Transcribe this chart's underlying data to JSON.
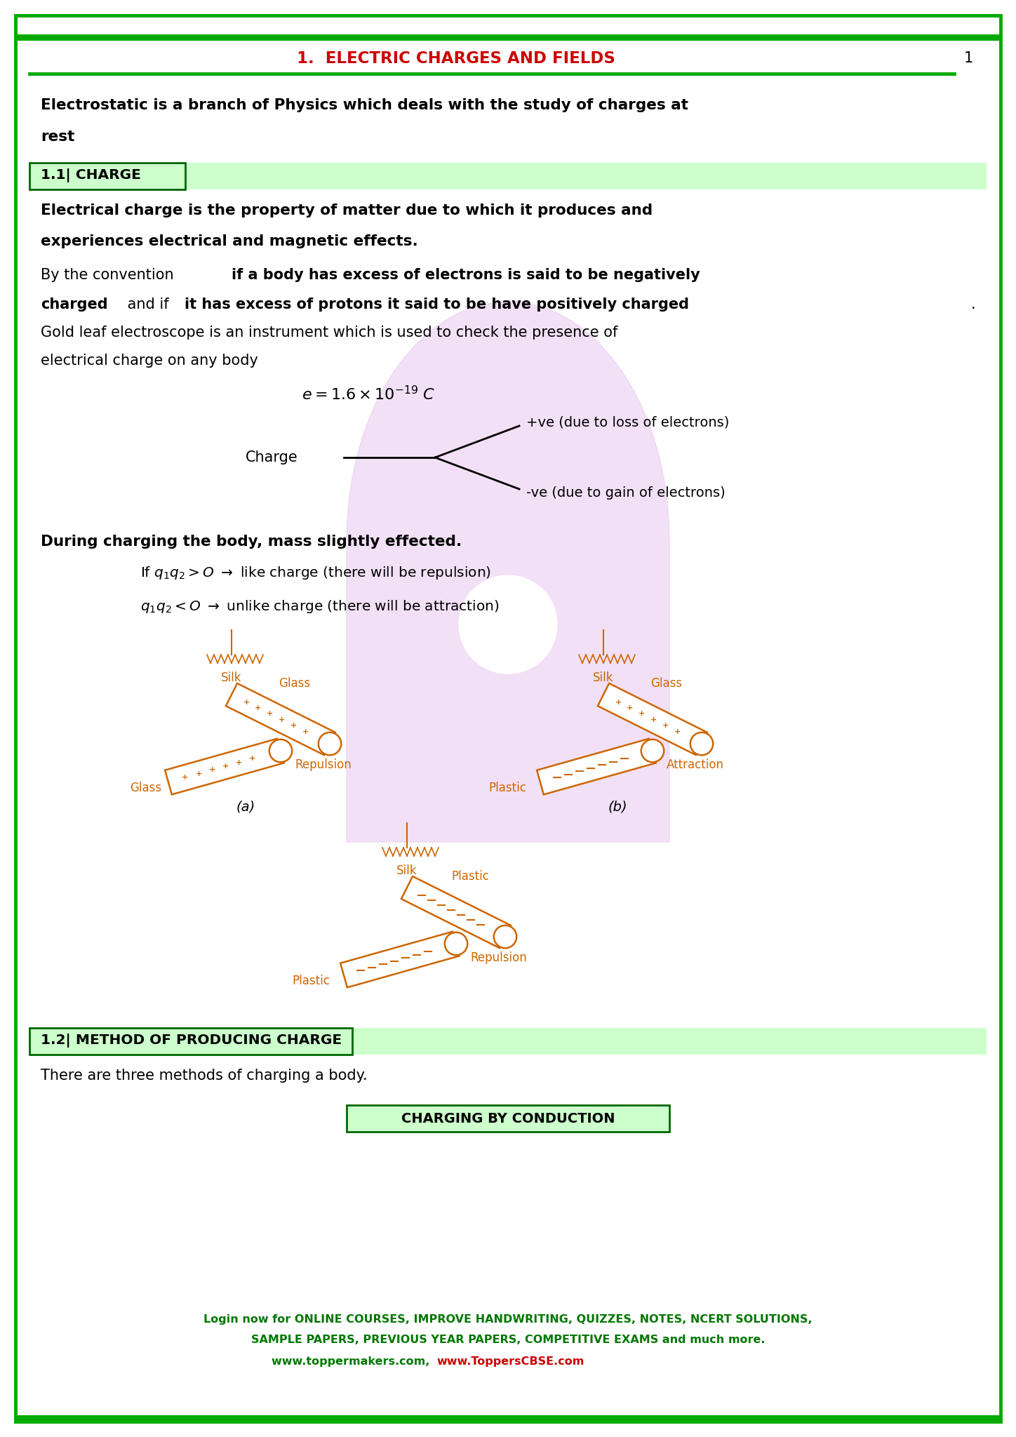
{
  "page_title": "1.  ELECTRIC CHARGES AND FIELDS",
  "page_number": "1",
  "title_color": "#cc0000",
  "border_color": "#00aa00",
  "header_line_color": "#00aa00",
  "background_color": "#ffffff",
  "section_bg": "#ccffcc",
  "section_border": "#006600",
  "rod_color": "#cc6600",
  "rod_face": "#ffffff",
  "watermark_color": "#e8c8f0",
  "intro_text_line1": "Electrostatic is a branch of Physics which deals with the study of charges at",
  "intro_text_line2": "rest",
  "section1_label": "1.1| CHARGE",
  "sec1_def_line1": "Electrical charge is the property of matter due to which it produces and",
  "sec1_def_line2": "experiences electrical and magnetic effects.",
  "charge_label": "Charge",
  "charge_plus": "+ve (due to loss of electrons)",
  "charge_minus": "-ve (due to gain of electrons)",
  "mass_text": "During charging the body, mass slightly effected.",
  "section2_label": "1.2| METHOD OF PRODUCING CHARGE",
  "section2_intro": "There are three methods of charging a body.",
  "charging_conduction": "CHARGING BY CONDUCTION",
  "footer_line1": "Login now for ONLINE COURSES, IMPROVE HANDWRITING, QUIZZES, NOTES, NCERT SOLUTIONS,",
  "footer_line2": "SAMPLE PAPERS, PREVIOUS YEAR PAPERS, COMPETITIVE EXAMS and much more.",
  "footer_line3a": "www.toppermakers.com, ",
  "footer_line3b": "www.ToppersCBSE.com",
  "footer_color_green": "#007700",
  "footer_color_red": "#cc0000"
}
